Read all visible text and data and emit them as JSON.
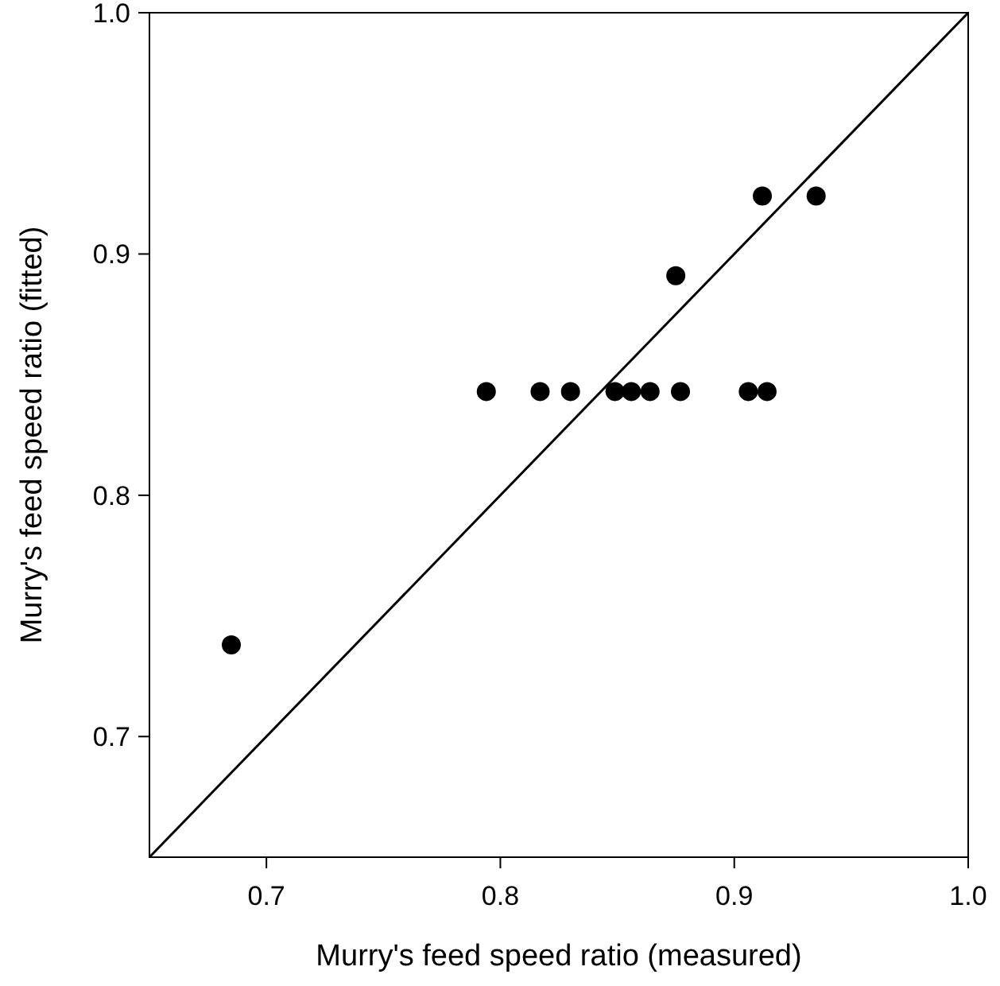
{
  "chart_data": {
    "type": "scatter",
    "xlabel": "Murry's feed speed ratio (measured)",
    "ylabel": "Murry's feed speed ratio (fitted)",
    "xlim": [
      0.65,
      1.0
    ],
    "ylim": [
      0.65,
      1.0
    ],
    "xticks": [
      0.7,
      0.8,
      0.9,
      {
        "value": 1,
        "label": "1.0"
      }
    ],
    "yticks": [
      0.7,
      0.8,
      0.9,
      {
        "value": 1,
        "label": "1.0"
      }
    ],
    "grid": false,
    "marker": "circle",
    "series": [
      {
        "color": "#000000",
        "x": [
          0.685,
          0.794,
          0.817,
          0.83,
          0.849,
          0.856,
          0.864,
          0.877,
          0.906,
          0.914,
          0.875,
          0.912,
          0.935
        ],
        "values": [
          0.738,
          0.843,
          0.843,
          0.843,
          0.843,
          0.843,
          0.843,
          0.843,
          0.843,
          0.843,
          0.891,
          0.924,
          0.924
        ]
      },
      {
        "type": "line",
        "color": "#000000",
        "x": [
          0.65,
          1.0
        ],
        "values": [
          0.65,
          1.0
        ],
        "marker": "none",
        "line_style": "solid"
      }
    ]
  }
}
